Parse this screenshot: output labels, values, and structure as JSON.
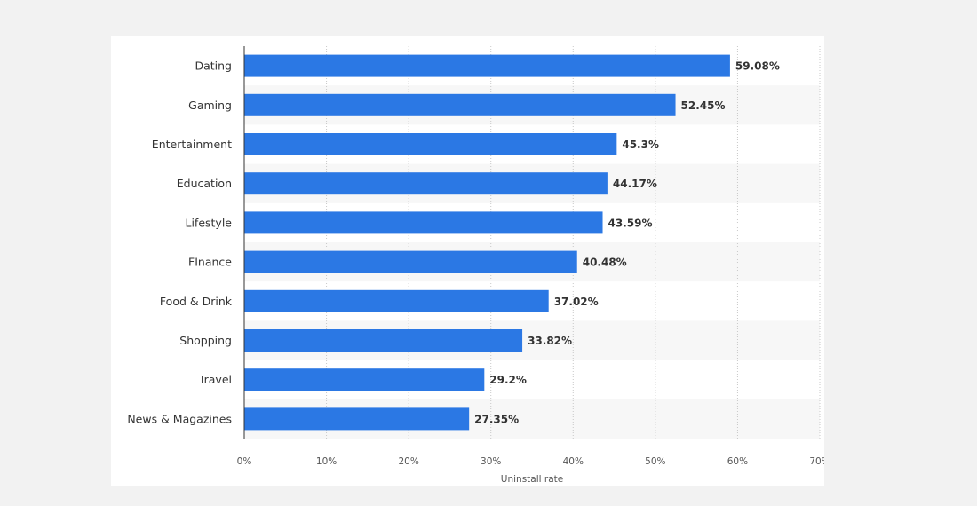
{
  "chart_data": {
    "type": "bar",
    "orientation": "horizontal",
    "categories": [
      "Dating",
      "Gaming",
      "Entertainment",
      "Education",
      "Lifestyle",
      "FInance",
      "Food & Drink",
      "Shopping",
      "Travel",
      "News & Magazines"
    ],
    "values": [
      59.08,
      52.45,
      45.3,
      44.17,
      43.59,
      40.48,
      37.02,
      33.82,
      29.2,
      27.35
    ],
    "value_labels": [
      "59.08%",
      "52.45%",
      "45.3%",
      "44.17%",
      "43.59%",
      "40.48%",
      "37.02%",
      "33.82%",
      "29.2%",
      "27.35%"
    ],
    "xlabel": "Uninstall rate",
    "xlim": [
      0,
      70
    ],
    "xticks": [
      0,
      10,
      20,
      30,
      40,
      50,
      60,
      70
    ],
    "xtick_labels": [
      "0%",
      "10%",
      "20%",
      "30%",
      "40%",
      "50%",
      "60%",
      "70%"
    ],
    "grid": true,
    "bar_color": "#2b78e4",
    "alt_row_color": "#f7f7f7"
  }
}
